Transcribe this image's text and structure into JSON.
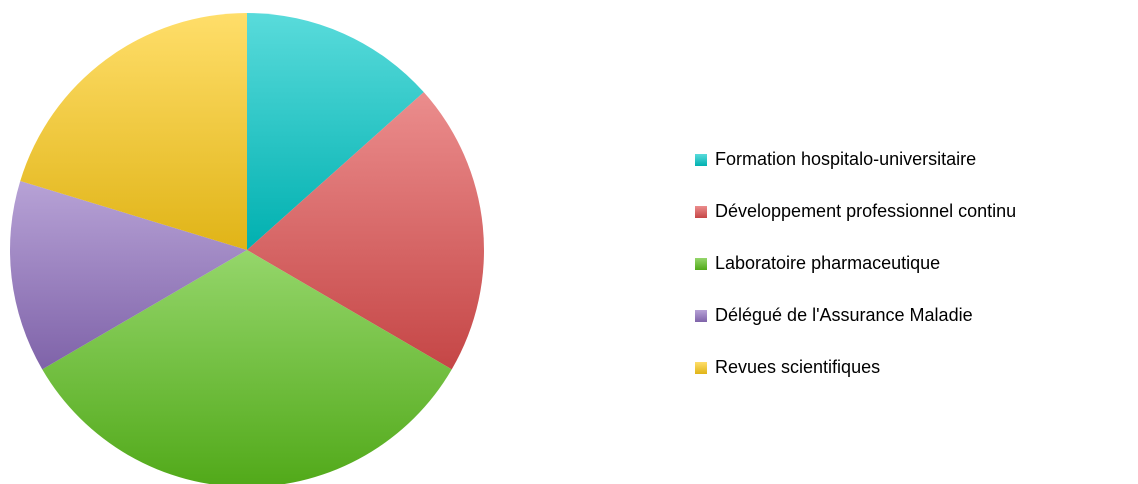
{
  "chart_data": {
    "type": "pie",
    "categories": [
      "Formation hospitalo-universitaire",
      "Développement professionnel continu",
      "Laboratoire pharmaceutique",
      "Délégué de l'Assurance Maladie",
      "Revues scientifiques"
    ],
    "values": [
      13.4,
      20,
      33.2,
      13.1,
      20.3
    ],
    "colors": [
      "#00c8c8",
      "#e05050",
      "#5cc01c",
      "#9070c0",
      "#ffcc1a"
    ],
    "legend": "right"
  }
}
